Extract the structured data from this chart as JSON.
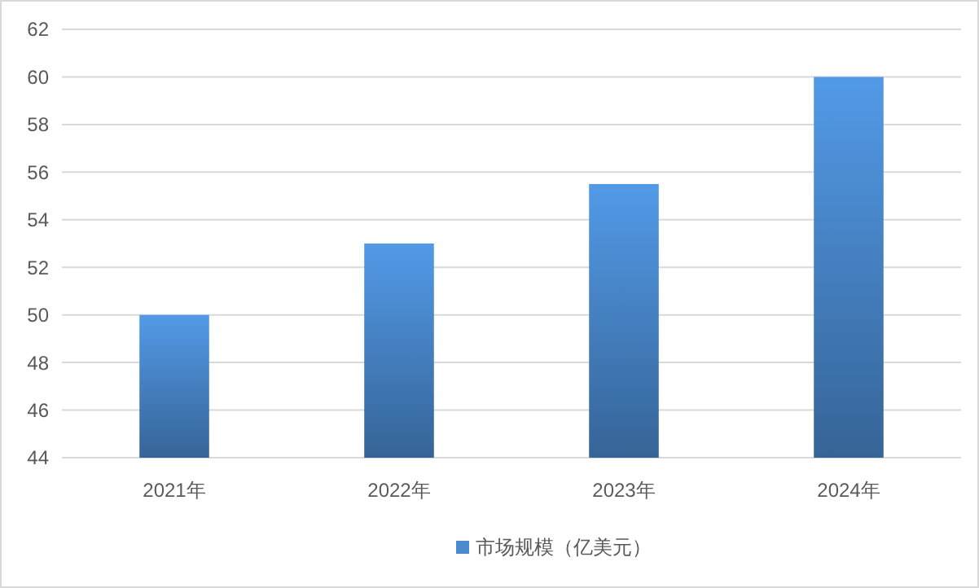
{
  "chart_data": {
    "type": "bar",
    "categories": [
      "2021年",
      "2022年",
      "2023年",
      "2024年"
    ],
    "series": [
      {
        "name": "市场规模（亿美元）",
        "color": "#4a8ad0",
        "values": [
          50,
          53,
          55.5,
          60
        ]
      }
    ],
    "ylim": [
      44,
      62
    ],
    "yticks": [
      44,
      46,
      48,
      50,
      52,
      54,
      56,
      58,
      60,
      62
    ],
    "grid": "y",
    "legend": "bottom"
  }
}
